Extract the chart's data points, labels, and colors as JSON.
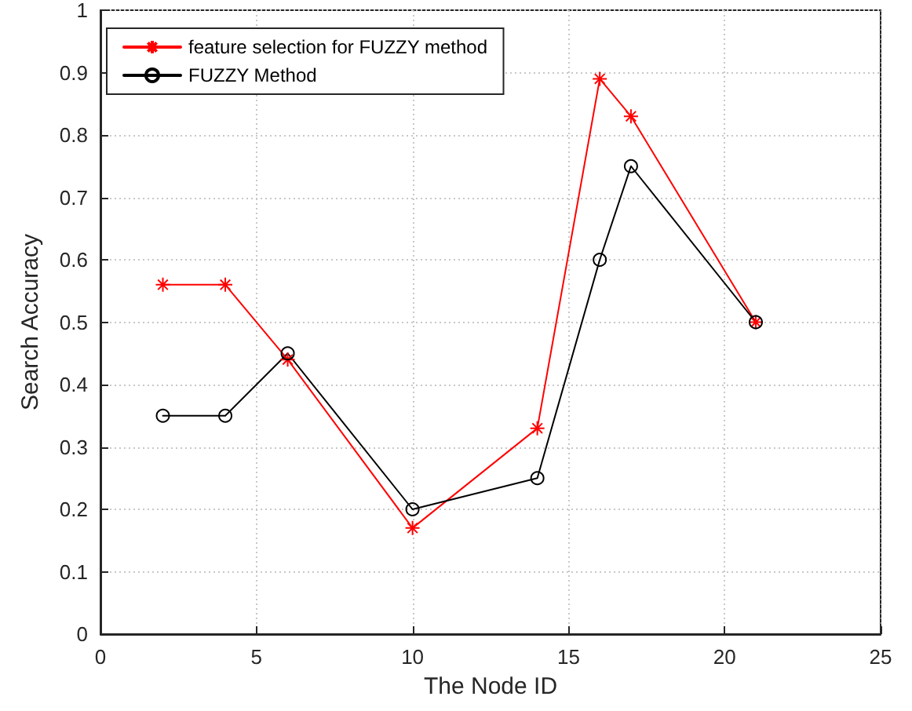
{
  "chart_data": {
    "type": "line",
    "xlabel": "The Node ID",
    "ylabel": "Search Accuracy",
    "xlim": [
      0,
      25
    ],
    "xticks": [
      0,
      5,
      10,
      15,
      20,
      25
    ],
    "ylim": [
      0,
      1
    ],
    "yticks": [
      0,
      0.1,
      0.2,
      0.3,
      0.4,
      0.5,
      0.6,
      0.7,
      0.8,
      0.9,
      1
    ],
    "grid": true,
    "legend": "top left",
    "line_style": "solid",
    "series": [
      {
        "name": "feature selection for FUZZY method",
        "color": "#ff0000",
        "marker": "cross",
        "x": [
          2,
          4,
          6,
          10,
          14,
          16,
          17,
          21
        ],
        "values": [
          0.56,
          0.56,
          0.44,
          0.17,
          0.33,
          0.89,
          0.83,
          0.5
        ]
      },
      {
        "name": "FUZZY Method",
        "color": "#000000",
        "marker": "circle",
        "x": [
          2,
          4,
          6,
          10,
          14,
          16,
          17,
          21
        ],
        "values": [
          0.35,
          0.35,
          0.45,
          0.2,
          0.25,
          0.6,
          0.75,
          0.5
        ]
      }
    ]
  }
}
